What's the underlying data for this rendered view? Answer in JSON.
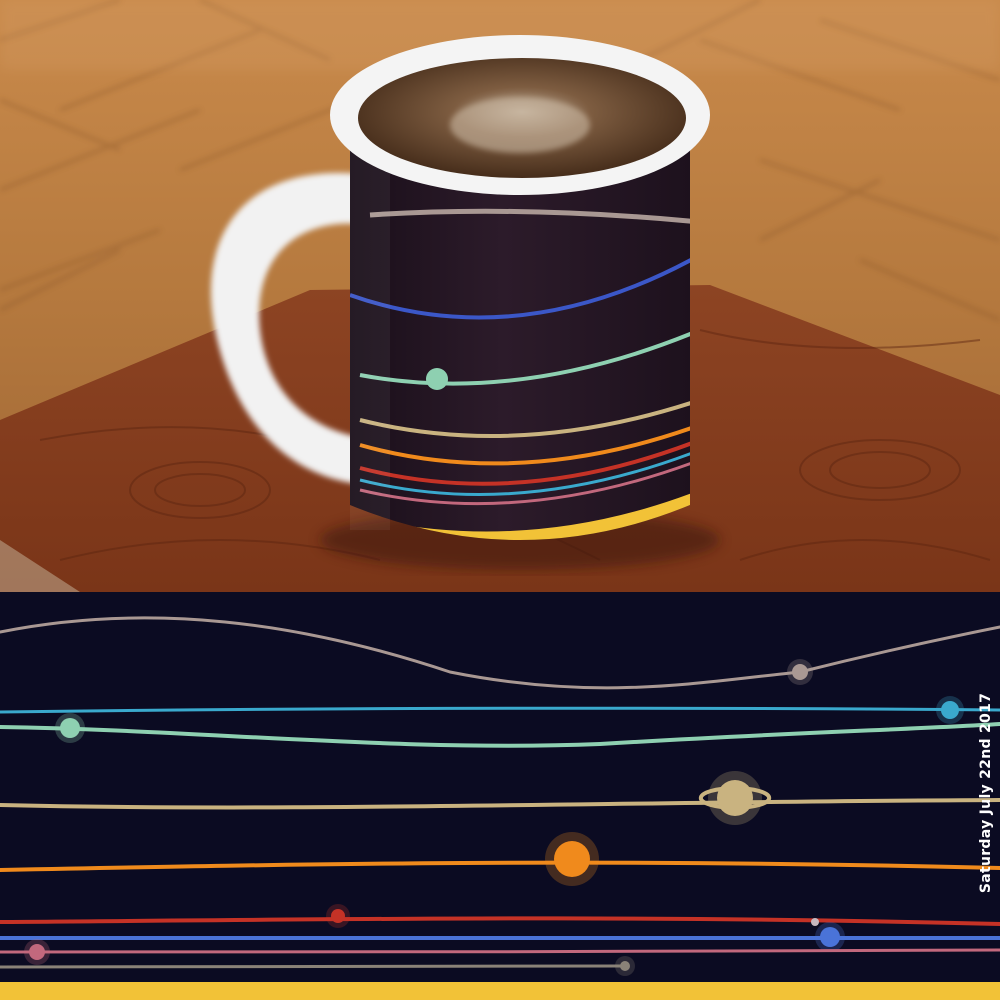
{
  "date_label": "Saturday  July 22nd 2017",
  "colors": {
    "floor": "#b5793e",
    "table": "#8a3d1d",
    "mug_body": "#241624",
    "print_bg": "#0b0b22",
    "base_band": "#f2c237"
  },
  "orbits": [
    {
      "name": "orbit-taupe",
      "color": "#a99893"
    },
    {
      "name": "orbit-cyan",
      "color": "#3aa9cd"
    },
    {
      "name": "orbit-mint",
      "color": "#8ed0b1"
    },
    {
      "name": "orbit-tan",
      "color": "#c9b380"
    },
    {
      "name": "orbit-orange",
      "color": "#f08a1c"
    },
    {
      "name": "orbit-red",
      "color": "#c53226"
    },
    {
      "name": "orbit-blue",
      "color": "#4a73d8"
    },
    {
      "name": "orbit-pink",
      "color": "#c2687d"
    },
    {
      "name": "orbit-grey",
      "color": "#8a8278"
    }
  ]
}
